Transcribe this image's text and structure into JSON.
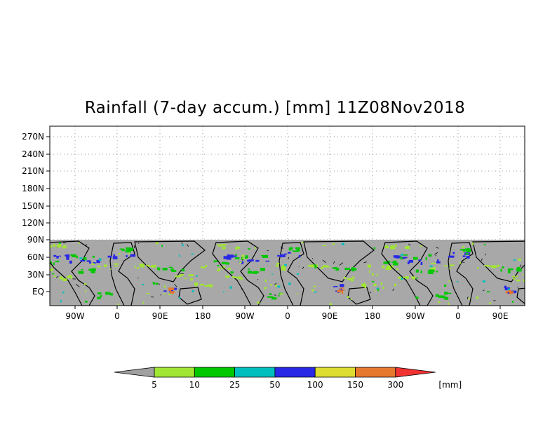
{
  "title": "Rainfall (7-day accum.) [mm] 11Z08Nov2018",
  "y_axis": {
    "ticks": [
      "270N",
      "240N",
      "210N",
      "180N",
      "150N",
      "120N",
      "90N",
      "60N",
      "30N",
      "EQ"
    ]
  },
  "x_axis": {
    "ticks": [
      "90W",
      "0",
      "90E",
      "180",
      "90W",
      "0",
      "90E",
      "180",
      "90W",
      "0",
      "90E"
    ]
  },
  "colorbar": {
    "unit": "[mm]",
    "levels": [
      "5",
      "10",
      "25",
      "50",
      "100",
      "150",
      "300"
    ],
    "colors": [
      "#a0a0a0",
      "#a0e632",
      "#00c800",
      "#00bebe",
      "#2828e6",
      "#dcdc32",
      "#e6782d",
      "#f03232"
    ]
  },
  "map_colors": {
    "background": "#a8a8a8",
    "land_outline": "#000000",
    "light_rain": "#a0e632",
    "moderate_rain": "#00c800",
    "heavy_rain": "#00bebe",
    "very_heavy_rain": "#2828e6",
    "extreme_rain": "#e6782d"
  }
}
